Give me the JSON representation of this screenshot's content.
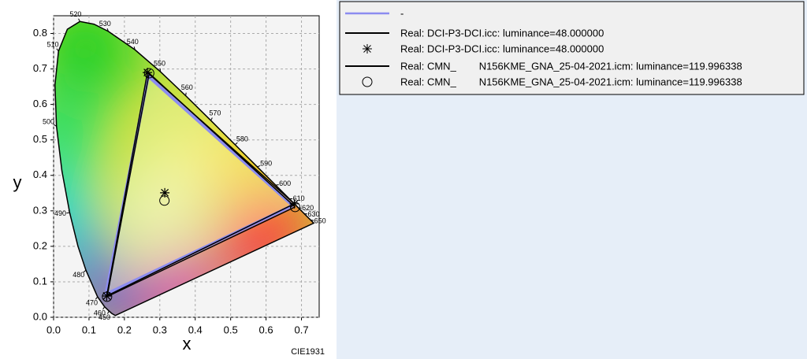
{
  "chart_data": {
    "type": "chromaticity",
    "x_label": "x",
    "y_label": "y",
    "footer": "CIE1931",
    "xlim": [
      0,
      0.75
    ],
    "ylim": [
      0,
      0.85
    ],
    "xticks": [
      {
        "value": 0,
        "label": "0.0"
      },
      0.1,
      0.2,
      0.3,
      0.4,
      0.5,
      0.6,
      0.7
    ],
    "yticks": [
      {
        "value": 0,
        "label": "0.0"
      },
      0.1,
      0.2,
      0.3,
      0.4,
      0.5,
      0.6,
      0.7,
      0.8
    ],
    "grid": true,
    "locus": {
      "labels": [
        null,
        null,
        "450",
        "460",
        "470",
        "480",
        null,
        "490",
        null,
        "500",
        null,
        "510",
        null,
        "520",
        null,
        "530",
        "540",
        "550",
        "560",
        "570",
        "580",
        "590",
        "600",
        "610",
        "620",
        "630",
        null,
        "650",
        null
      ],
      "x": [
        0.1741,
        0.1644,
        0.1566,
        0.144,
        0.1241,
        0.0913,
        0.0687,
        0.0454,
        0.0235,
        0.0082,
        0.0039,
        0.0139,
        0.0389,
        0.0743,
        0.1142,
        0.1547,
        0.2296,
        0.3016,
        0.3731,
        0.4441,
        0.5125,
        0.5752,
        0.627,
        0.6658,
        0.6915,
        0.7079,
        0.719,
        0.726,
        0.7347
      ],
      "y": [
        0.005,
        0.0109,
        0.0177,
        0.0297,
        0.0578,
        0.1327,
        0.2007,
        0.295,
        0.4127,
        0.5384,
        0.6548,
        0.7502,
        0.812,
        0.8338,
        0.8262,
        0.8059,
        0.7543,
        0.6923,
        0.6245,
        0.5547,
        0.4866,
        0.4242,
        0.3725,
        0.334,
        0.3083,
        0.292,
        0.2809,
        0.274,
        0.2653
      ]
    },
    "legend": "outside-right",
    "series": [
      {
        "name": "-",
        "color": "#8c8cf0",
        "marker": "line",
        "x": [
          0.675,
          0.267,
          0.148,
          0.675
        ],
        "y": [
          0.315,
          0.68,
          0.065,
          0.315
        ]
      },
      {
        "name": "Real: DCI-P3-DCI.icc: luminance=48.000000",
        "color": "#000000",
        "marker": "line",
        "x": [
          0.68,
          0.265,
          0.15,
          0.68
        ],
        "y": [
          0.32,
          0.69,
          0.06,
          0.32
        ]
      },
      {
        "name": "Real: DCI-P3-DCI.icc: luminance=48.000000",
        "color": "#000000",
        "marker": "star",
        "x": [
          0.68,
          0.265,
          0.15,
          0.314
        ],
        "y": [
          0.32,
          0.69,
          0.06,
          0.351
        ]
      },
      {
        "name": "Real: CMN_        N156KME_GNA_25-04-2021.icm: luminance=119.996338",
        "color": "#000000",
        "marker": "line",
        "x": [
          0.682,
          0.27,
          0.151,
          0.682
        ],
        "y": [
          0.311,
          0.688,
          0.058,
          0.311
        ]
      },
      {
        "name": "Real: CMN_        N156KME_GNA_25-04-2021.icm: luminance=119.996338",
        "color": "#000000",
        "marker": "circle",
        "x": [
          0.682,
          0.27,
          0.151,
          0.313
        ],
        "y": [
          0.311,
          0.688,
          0.058,
          0.329
        ]
      }
    ]
  }
}
